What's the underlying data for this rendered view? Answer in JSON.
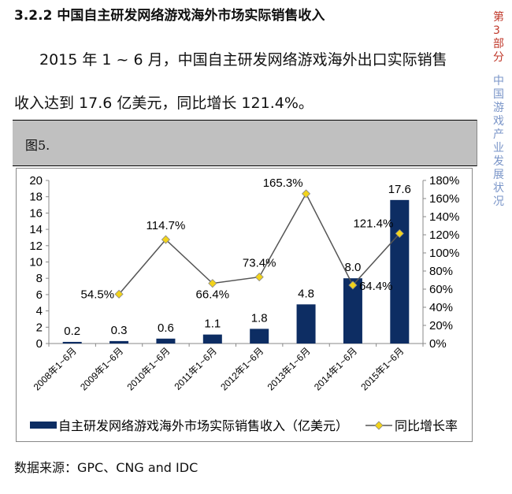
{
  "heading": "3.2.2 中国自主研发网络游戏海外市场实际销售收入",
  "paragraph": {
    "line1": "2015 年 1 ~ 6 月，中国自主研发网络游戏海外出口实际销售",
    "line2": "收入达到 17.6 亿美元，同比增长 121.4%。"
  },
  "figure_label": "图5.",
  "source": "数据来源：GPC、CNG and IDC",
  "side_text": {
    "red": [
      "第",
      "3",
      "部",
      "分"
    ],
    "blue": [
      "中",
      "国",
      "游",
      "戏",
      "产",
      "业",
      "发",
      "展",
      "状",
      "况"
    ]
  },
  "chart_data": {
    "type": "bar+line",
    "categories": [
      "2008年1~6月",
      "2009年1~6月",
      "2010年1~6月",
      "2011年1~6月",
      "2012年1~6月",
      "2013年1~6月",
      "2014年1~6月",
      "2015年1~6月"
    ],
    "series": [
      {
        "name": "自主研发网络游戏海外市场实际销售收入（亿美元）",
        "type": "bar",
        "axis": "left",
        "color": "#0d2d63",
        "values": [
          0.2,
          0.3,
          0.6,
          1.1,
          1.8,
          4.8,
          8.0,
          17.6
        ],
        "labels": [
          "0.2",
          "0.3",
          "0.6",
          "1.1",
          "1.8",
          "4.8",
          "8.0",
          "17.6"
        ]
      },
      {
        "name": "同比增长率",
        "type": "line",
        "axis": "right",
        "color": "#555555",
        "marker_color": "#f2d31b",
        "values": [
          null,
          54.5,
          114.7,
          66.4,
          73.4,
          165.3,
          64.4,
          121.4
        ],
        "labels": [
          null,
          "54.5%",
          "114.7%",
          "66.4%",
          "73.4%",
          "165.3%",
          "64.4%",
          "121.4%"
        ]
      }
    ],
    "y_left": {
      "range": [
        0,
        20
      ],
      "ticks": [
        "0",
        "2",
        "4",
        "6",
        "8",
        "10",
        "12",
        "14",
        "16",
        "18",
        "20"
      ]
    },
    "y_right": {
      "range": [
        0,
        180
      ],
      "ticks": [
        "0%",
        "20%",
        "40%",
        "60%",
        "80%",
        "100%",
        "120%",
        "140%",
        "160%",
        "180%"
      ]
    },
    "grid": false,
    "legend": "bottom"
  }
}
